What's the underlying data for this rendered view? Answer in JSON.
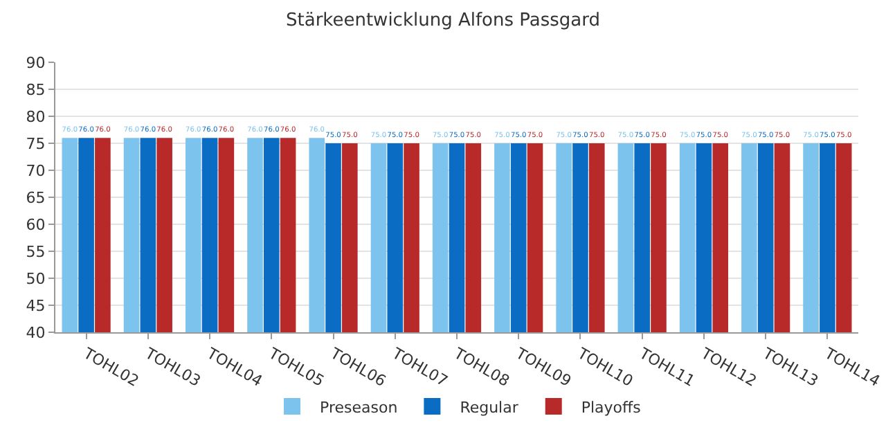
{
  "chart_data": {
    "type": "bar",
    "title": "Stärkeentwicklung Alfons Passgard",
    "categories": [
      "TOHL02",
      "TOHL03",
      "TOHL04",
      "TOHL05",
      "TOHL06",
      "TOHL07",
      "TOHL08",
      "TOHL09",
      "TOHL10",
      "TOHL11",
      "TOHL12",
      "TOHL13",
      "TOHL14"
    ],
    "series": [
      {
        "name": "Preseason",
        "color": "#7cc3ee",
        "values": [
          76,
          76,
          76,
          76,
          76,
          75,
          75,
          75,
          75,
          75,
          75,
          75,
          75
        ],
        "value_labels": [
          "76.0",
          "76.0",
          "76.0",
          "76.0",
          "76.0",
          "75.0",
          "75.0",
          "75.0",
          "75.0",
          "75.0",
          "75.0",
          "75.0",
          "75.0"
        ]
      },
      {
        "name": "Regular",
        "color": "#0b6cc4",
        "values": [
          76,
          76,
          76,
          76,
          75,
          75,
          75,
          75,
          75,
          75,
          75,
          75,
          75
        ],
        "value_labels": [
          "76.0",
          "76.0",
          "76.0",
          "76.0",
          "75.0",
          "75.0",
          "75.0",
          "75.0",
          "75.0",
          "75.0",
          "75.0",
          "75.0",
          "75.0"
        ]
      },
      {
        "name": "Playoffs",
        "color": "#b8292a",
        "values": [
          76,
          76,
          76,
          76,
          75,
          75,
          75,
          75,
          75,
          75,
          75,
          75,
          75
        ],
        "value_labels": [
          "76.0",
          "76.0",
          "76.0",
          "76.0",
          "75.0",
          "75.0",
          "75.0",
          "75.0",
          "75.0",
          "75.0",
          "75.0",
          "75.0",
          "75.0"
        ]
      }
    ],
    "ylim": [
      40,
      90
    ],
    "yticks": [
      40,
      45,
      50,
      55,
      60,
      65,
      70,
      75,
      80,
      85,
      90
    ],
    "grid": "y",
    "legend": "bottom"
  }
}
